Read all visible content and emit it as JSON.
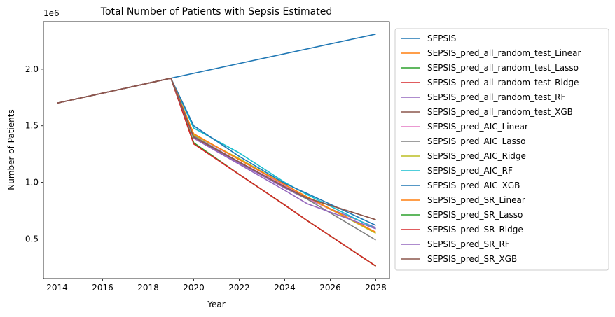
{
  "chart_data": {
    "type": "line",
    "title": "Total Number of Patients with Sepsis Estimated",
    "xlabel": "Year",
    "ylabel": "Number of Patients",
    "y_offset_label": "1e6",
    "xlim": [
      2013.4,
      2028.6
    ],
    "ylim": [
      0.15,
      2.42
    ],
    "x_ticks": [
      2014,
      2016,
      2018,
      2020,
      2022,
      2024,
      2026,
      2028
    ],
    "y_ticks": [
      0.5,
      1.0,
      1.5,
      2.0
    ],
    "y_tick_labels": [
      "0.5",
      "1.0",
      "1.5",
      "2.0"
    ],
    "legend_location": "outside-right",
    "x": [
      2014,
      2019,
      2020,
      2022,
      2024,
      2025,
      2028
    ],
    "series": [
      {
        "name": "SEPSIS",
        "color": "#1f77b4",
        "x": [
          2014,
          2019,
          2028
        ],
        "values": [
          1.7,
          1.92,
          2.31
        ]
      },
      {
        "name": "SEPSIS_pred_all_random_test_Linear",
        "color": "#ff7f0e",
        "values": [
          1.7,
          1.92,
          1.35,
          1.07,
          0.8,
          0.66,
          0.26
        ]
      },
      {
        "name": "SEPSIS_pred_all_random_test_Lasso",
        "color": "#2ca02c",
        "values": [
          1.7,
          1.92,
          1.35,
          1.07,
          0.8,
          0.66,
          0.26
        ]
      },
      {
        "name": "SEPSIS_pred_all_random_test_Ridge",
        "color": "#d62728",
        "values": [
          1.7,
          1.92,
          1.34,
          1.07,
          0.8,
          0.66,
          0.26
        ]
      },
      {
        "name": "SEPSIS_pred_all_random_test_RF",
        "color": "#9467bd",
        "values": [
          1.7,
          1.92,
          1.4,
          1.17,
          0.95,
          0.85,
          0.6
        ]
      },
      {
        "name": "SEPSIS_pred_all_random_test_XGB",
        "color": "#8c564b",
        "values": [
          1.7,
          1.92,
          1.4,
          1.18,
          0.96,
          0.86,
          0.67
        ]
      },
      {
        "name": "SEPSIS_pred_AIC_Linear",
        "color": "#e377c2",
        "values": [
          1.7,
          1.92,
          1.42,
          1.2,
          0.97,
          0.86,
          0.56
        ]
      },
      {
        "name": "SEPSIS_pred_AIC_Lasso",
        "color": "#7f7f7f",
        "values": [
          1.7,
          1.92,
          1.41,
          1.18,
          0.96,
          0.85,
          0.49
        ]
      },
      {
        "name": "SEPSIS_pred_AIC_Ridge",
        "color": "#bcbd22",
        "values": [
          1.7,
          1.92,
          1.42,
          1.21,
          0.98,
          0.87,
          0.55
        ]
      },
      {
        "name": "SEPSIS_pred_AIC_RF",
        "color": "#17becf",
        "values": [
          1.7,
          1.92,
          1.48,
          1.26,
          1.0,
          0.89,
          0.59
        ]
      },
      {
        "name": "SEPSIS_pred_AIC_XGB",
        "color": "#1f77b4",
        "values": [
          1.7,
          1.92,
          1.5,
          1.23,
          0.99,
          0.9,
          0.62
        ]
      },
      {
        "name": "SEPSIS_pred_SR_Linear",
        "color": "#ff7f0e",
        "values": [
          1.7,
          1.92,
          1.43,
          1.2,
          0.98,
          0.87,
          0.56
        ]
      },
      {
        "name": "SEPSIS_pred_SR_Lasso",
        "color": "#2ca02c",
        "values": [
          1.7,
          1.92,
          1.35,
          1.07,
          0.8,
          0.66,
          0.26
        ]
      },
      {
        "name": "SEPSIS_pred_SR_Ridge",
        "color": "#d62728",
        "values": [
          1.7,
          1.92,
          1.34,
          1.07,
          0.8,
          0.66,
          0.26
        ]
      },
      {
        "name": "SEPSIS_pred_SR_RF",
        "color": "#9467bd",
        "values": [
          1.7,
          1.92,
          1.39,
          1.16,
          0.93,
          0.81,
          0.59
        ]
      },
      {
        "name": "SEPSIS_pred_SR_XGB",
        "color": "#8c564b",
        "values": [
          1.7,
          1.92,
          1.4,
          1.18,
          0.96,
          0.86,
          0.67
        ]
      }
    ]
  }
}
